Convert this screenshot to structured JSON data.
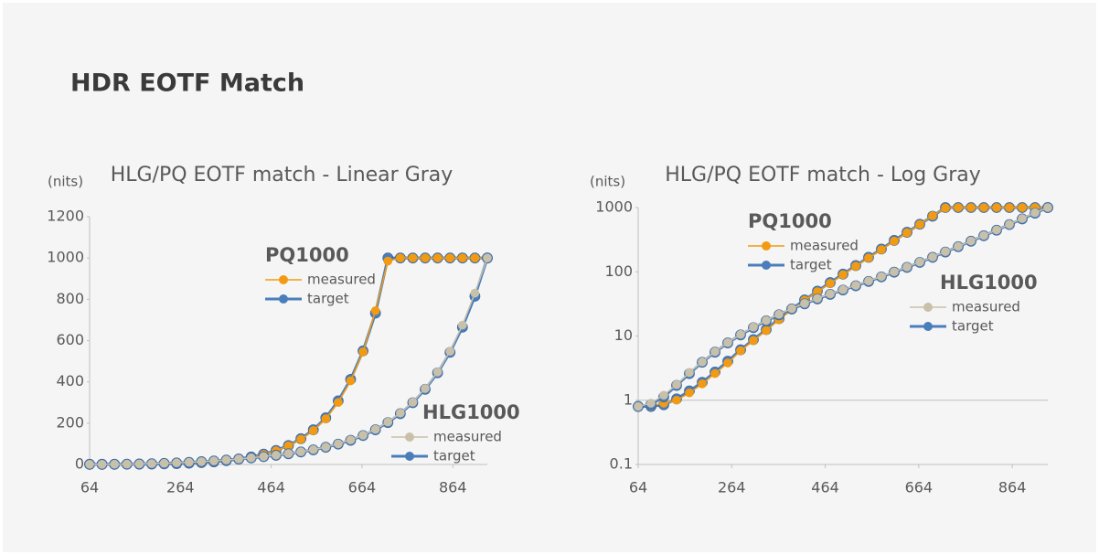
{
  "header": {
    "title": "HDR EOTF Match"
  },
  "chart_data": [
    {
      "type": "line",
      "title": "HLG/PQ EOTF match - Linear Gray",
      "y_label": "(nits)",
      "x": [
        64,
        91.375,
        118.75,
        146.125,
        173.5,
        200.875,
        228.25,
        255.625,
        283,
        310.375,
        337.75,
        365.125,
        392.5,
        419.875,
        447.25,
        474.625,
        502,
        529.375,
        556.75,
        584.125,
        611.5,
        638.875,
        666.25,
        693.625,
        721,
        748.375,
        775.75,
        803.125,
        830.5,
        857.875,
        885.25,
        912.625,
        940
      ],
      "xlim": [
        64,
        940
      ],
      "xticks": [
        64,
        264,
        464,
        664,
        864
      ],
      "ylim": [
        0,
        1200
      ],
      "yticks": [
        0,
        200,
        400,
        600,
        800,
        1000,
        1200
      ],
      "log_scale": false,
      "series_groups": [
        {
          "name": "PQ1000",
          "series": [
            {
              "name": "measured",
              "color": "#f29b12",
              "values": [
                0.8,
                0.82,
                0.9,
                1.0,
                1.3,
                1.8,
                2.6,
                3.8,
                5.9,
                8.5,
                12.2,
                18,
                25.5,
                36,
                49,
                66,
                90,
                122,
                164,
                221,
                300,
                405,
                545,
                745,
                985,
                1000,
                1000,
                1000,
                1000,
                1000,
                1000,
                1000,
                1000
              ]
            },
            {
              "name": "target",
              "color": "#4a7ebb",
              "values": [
                0.8,
                0.8,
                0.85,
                1.05,
                1.4,
                1.9,
                2.75,
                4.05,
                6.1,
                8.8,
                12.6,
                18.6,
                26.4,
                36.5,
                50,
                68,
                92,
                125,
                168,
                226,
                308,
                412,
                550,
                733,
                1000,
                1000,
                1000,
                1000,
                1000,
                1000,
                1000,
                1000,
                1000
              ]
            }
          ]
        },
        {
          "name": "HLG1000",
          "series": [
            {
              "name": "measured",
              "color": "#c9c0aa",
              "values": [
                0.8,
                0.9,
                1.2,
                1.75,
                2.7,
                3.95,
                5.7,
                7.9,
                10.6,
                13.8,
                17.5,
                21.8,
                26.8,
                32.2,
                38.5,
                45.2,
                52.8,
                61.5,
                72,
                84.5,
                100,
                119,
                142,
                170,
                206,
                249,
                302,
                368,
                448,
                548,
                675,
                830,
                1000
              ]
            },
            {
              "name": "target",
              "color": "#4a7ebb",
              "values": [
                0.8,
                0.86,
                1.13,
                1.7,
                2.6,
                3.9,
                5.6,
                7.8,
                10.4,
                13.5,
                17.2,
                21.4,
                26.3,
                31.7,
                37.8,
                44.5,
                51.9,
                60.5,
                70.7,
                83.2,
                98.5,
                117,
                140,
                168,
                203,
                246,
                299,
                364,
                444,
                543,
                665,
                815,
                1000
              ]
            }
          ]
        }
      ]
    },
    {
      "type": "line",
      "title": "HLG/PQ EOTF match - Log Gray",
      "y_label": "(nits)",
      "x": [
        64,
        91.375,
        118.75,
        146.125,
        173.5,
        200.875,
        228.25,
        255.625,
        283,
        310.375,
        337.75,
        365.125,
        392.5,
        419.875,
        447.25,
        474.625,
        502,
        529.375,
        556.75,
        584.125,
        611.5,
        638.875,
        666.25,
        693.625,
        721,
        748.375,
        775.75,
        803.125,
        830.5,
        857.875,
        885.25,
        912.625,
        940
      ],
      "xlim": [
        64,
        940
      ],
      "xticks": [
        64,
        264,
        464,
        664,
        864
      ],
      "ylim": [
        0.1,
        1000
      ],
      "yticks": [
        0.1,
        1,
        10,
        100,
        1000
      ],
      "log_scale": true,
      "x_axis_crosses": 1,
      "series_groups": [
        {
          "name": "PQ1000",
          "series": [
            {
              "name": "measured",
              "color": "#f29b12",
              "values": [
                0.8,
                0.82,
                0.9,
                1.0,
                1.3,
                1.8,
                2.6,
                3.8,
                5.9,
                8.5,
                12.2,
                18,
                25.5,
                36,
                49,
                66,
                90,
                122,
                164,
                221,
                300,
                405,
                545,
                745,
                985,
                1000,
                1000,
                1000,
                1000,
                1000,
                1000,
                1000,
                1000
              ]
            },
            {
              "name": "target",
              "color": "#4a7ebb",
              "values": [
                0.8,
                0.8,
                0.85,
                1.05,
                1.4,
                1.9,
                2.75,
                4.05,
                6.1,
                8.8,
                12.6,
                18.6,
                26.4,
                36.5,
                50,
                68,
                92,
                125,
                168,
                226,
                308,
                412,
                550,
                733,
                1000,
                1000,
                1000,
                1000,
                1000,
                1000,
                1000,
                1000,
                1000
              ]
            }
          ]
        },
        {
          "name": "HLG1000",
          "series": [
            {
              "name": "measured",
              "color": "#c9c0aa",
              "values": [
                0.8,
                0.9,
                1.2,
                1.75,
                2.7,
                3.95,
                5.7,
                7.9,
                10.6,
                13.8,
                17.5,
                21.8,
                26.8,
                32.2,
                38.5,
                45.2,
                52.8,
                61.5,
                72,
                84.5,
                100,
                119,
                142,
                170,
                206,
                249,
                302,
                368,
                448,
                548,
                675,
                830,
                1000
              ]
            },
            {
              "name": "target",
              "color": "#4a7ebb",
              "values": [
                0.8,
                0.86,
                1.13,
                1.7,
                2.6,
                3.9,
                5.6,
                7.8,
                10.4,
                13.5,
                17.2,
                21.4,
                26.3,
                31.7,
                37.8,
                44.5,
                51.9,
                60.5,
                70.7,
                83.2,
                98.5,
                117,
                140,
                168,
                203,
                246,
                299,
                364,
                444,
                543,
                665,
                815,
                1000
              ]
            }
          ]
        }
      ]
    }
  ]
}
